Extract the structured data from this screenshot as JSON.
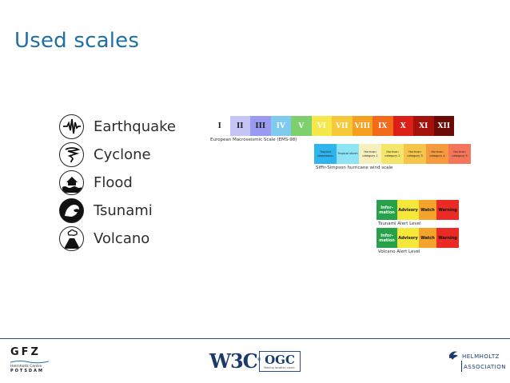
{
  "slide": {
    "title": "Used scales"
  },
  "hazards": [
    {
      "label": "Earthquake",
      "icon": "earthquake-icon"
    },
    {
      "label": "Cyclone",
      "icon": "cyclone-icon"
    },
    {
      "label": "Flood",
      "icon": "flood-icon"
    },
    {
      "label": "Tsunami",
      "icon": "tsunami-icon"
    },
    {
      "label": "Volcano",
      "icon": "volcano-icon"
    }
  ],
  "ems": {
    "levels": [
      "I",
      "II",
      "III",
      "IV",
      "V",
      "VI",
      "VII",
      "VIII",
      "IX",
      "X",
      "XI",
      "XII"
    ],
    "colors": [
      "#ffffff",
      "#c5c5f5",
      "#9a9af0",
      "#7ecbef",
      "#7ed06f",
      "#f5e84a",
      "#f5c93a",
      "#f5a020",
      "#f46a1c",
      "#dc1f17",
      "#a4120e",
      "#6a0a07"
    ],
    "caption": "European Macroseismic Scale (EMS-98)"
  },
  "saffir_simpson": {
    "categories": [
      "Tropical depression",
      "Tropical storm",
      "Hurrican category 1",
      "Hurrican category 2",
      "Hurrican category 3",
      "Hurrican category 4",
      "Hurrican category 5"
    ],
    "colors": [
      "#2fb5ee",
      "#8ee4f4",
      "#f5f0bd",
      "#f5e56b",
      "#f5c44a",
      "#f59a3d",
      "#f4765a"
    ],
    "caption": "Siffir-Simpson hurricane wind scale"
  },
  "tsunami_alert": {
    "levels": [
      "Infor-mation",
      "Advisory",
      "Watch",
      "Warning"
    ],
    "colors": [
      "#25a24a",
      "#f5e83a",
      "#f4a42a",
      "#ea2a24"
    ],
    "caption": "Tsunami Alert Level"
  },
  "volcano_alert": {
    "levels": [
      "Infor-mation",
      "Advisory",
      "Watch",
      "Warning"
    ],
    "colors": [
      "#25a24a",
      "#f5e83a",
      "#f4a42a",
      "#ea2a24"
    ],
    "caption": "Volcano Alert Level"
  },
  "footer": {
    "gfz": {
      "logo": "GFZ",
      "line1": "Helmholtz Centre",
      "line2": "POTSDAM"
    },
    "w3c": {
      "logo": "W3C"
    },
    "ogc": {
      "logo": "OGC",
      "tagline": "Making location count."
    },
    "helmholtz": {
      "name": "HELMHOLTZ",
      "assoc": "ASSOCIATION"
    }
  }
}
